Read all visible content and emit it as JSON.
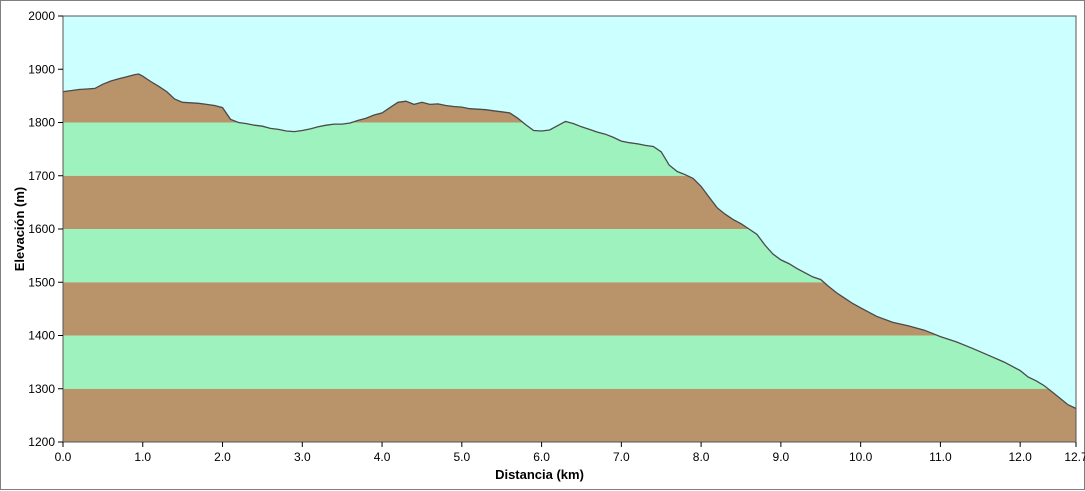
{
  "chart_data": {
    "type": "area",
    "xlabel": "Distancia  (km)",
    "ylabel": "Elevación (m)",
    "xlim": [
      0,
      12.7
    ],
    "ylim": [
      1200,
      2000
    ],
    "x_ticks": [
      0,
      1,
      2,
      3,
      4,
      5,
      6,
      7,
      8,
      9,
      10,
      11,
      12,
      12.7
    ],
    "x_tick_labels": [
      "0.0",
      "1.0",
      "2.0",
      "3.0",
      "4.0",
      "5.0",
      "6.0",
      "7.0",
      "8.0",
      "9.0",
      "10.0",
      "11.0",
      "12.0",
      "12.7"
    ],
    "y_ticks": [
      1200,
      1300,
      1400,
      1500,
      1600,
      1700,
      1800,
      1900,
      2000
    ],
    "y_tick_labels": [
      "1200",
      "1300",
      "1400",
      "1500",
      "1600",
      "1700",
      "1800",
      "1900",
      "2000"
    ],
    "grid": false,
    "colors": {
      "sky": "#ccffff",
      "band_brown": "#b9946b",
      "band_green": "#9ef2bd",
      "profile_line": "#4a4a4a",
      "axis": "#000000"
    },
    "series": [
      {
        "x": [
          0.0,
          0.1,
          0.2,
          0.3,
          0.4,
          0.5,
          0.6,
          0.7,
          0.8,
          0.9,
          0.95,
          1.0,
          1.1,
          1.2,
          1.3,
          1.4,
          1.5,
          1.6,
          1.7,
          1.8,
          1.9,
          2.0,
          2.1,
          2.2,
          2.3,
          2.4,
          2.5,
          2.6,
          2.7,
          2.8,
          2.9,
          3.0,
          3.1,
          3.2,
          3.3,
          3.4,
          3.5,
          3.6,
          3.7,
          3.8,
          3.9,
          4.0,
          4.1,
          4.2,
          4.3,
          4.4,
          4.5,
          4.6,
          4.7,
          4.8,
          4.9,
          5.0,
          5.1,
          5.2,
          5.3,
          5.4,
          5.5,
          5.6,
          5.7,
          5.8,
          5.9,
          6.0,
          6.1,
          6.2,
          6.3,
          6.4,
          6.5,
          6.6,
          6.7,
          6.8,
          6.9,
          7.0,
          7.1,
          7.2,
          7.3,
          7.4,
          7.5,
          7.6,
          7.7,
          7.8,
          7.9,
          8.0,
          8.1,
          8.2,
          8.3,
          8.4,
          8.5,
          8.6,
          8.7,
          8.8,
          8.9,
          9.0,
          9.1,
          9.2,
          9.3,
          9.4,
          9.5,
          9.6,
          9.7,
          9.8,
          9.9,
          10.0,
          10.2,
          10.4,
          10.6,
          10.8,
          11.0,
          11.2,
          11.4,
          11.6,
          11.8,
          12.0,
          12.1,
          12.2,
          12.3,
          12.4,
          12.5,
          12.6,
          12.7
        ],
        "y": [
          1858,
          1860,
          1862,
          1863,
          1864,
          1872,
          1878,
          1882,
          1886,
          1890,
          1891,
          1887,
          1877,
          1868,
          1858,
          1844,
          1838,
          1837,
          1836,
          1834,
          1832,
          1828,
          1806,
          1800,
          1798,
          1795,
          1793,
          1789,
          1787,
          1784,
          1783,
          1785,
          1788,
          1792,
          1795,
          1797,
          1797,
          1799,
          1804,
          1808,
          1814,
          1818,
          1828,
          1838,
          1840,
          1834,
          1838,
          1834,
          1835,
          1832,
          1830,
          1829,
          1826,
          1825,
          1824,
          1822,
          1820,
          1818,
          1808,
          1796,
          1785,
          1784,
          1786,
          1794,
          1802,
          1798,
          1792,
          1787,
          1782,
          1778,
          1772,
          1765,
          1762,
          1760,
          1757,
          1755,
          1745,
          1720,
          1708,
          1702,
          1695,
          1680,
          1660,
          1640,
          1628,
          1618,
          1610,
          1600,
          1590,
          1570,
          1553,
          1542,
          1535,
          1526,
          1518,
          1510,
          1505,
          1492,
          1480,
          1470,
          1460,
          1452,
          1436,
          1425,
          1418,
          1410,
          1398,
          1388,
          1376,
          1363,
          1350,
          1334,
          1322,
          1315,
          1306,
          1294,
          1282,
          1270,
          1263
        ]
      }
    ]
  }
}
